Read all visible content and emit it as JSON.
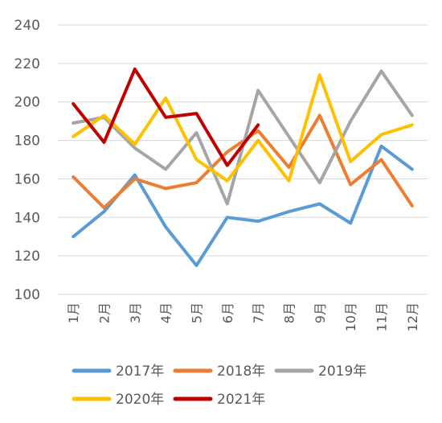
{
  "chart_data": {
    "type": "line",
    "title": "",
    "xlabel": "",
    "ylabel": "",
    "ylim": [
      100,
      240
    ],
    "yticks": [
      100,
      120,
      140,
      160,
      180,
      200,
      220,
      240
    ],
    "grid": true,
    "legend_position": "bottom",
    "categories": [
      "1月",
      "2月",
      "3月",
      "4月",
      "5月",
      "6月",
      "7月",
      "8月",
      "9月",
      "10月",
      "11月",
      "12月"
    ],
    "series": [
      {
        "name": "2017年",
        "color": "#5B9BD5",
        "values": [
          130,
          143,
          162,
          135,
          115,
          140,
          138,
          143,
          147,
          137,
          177,
          165
        ]
      },
      {
        "name": "2018年",
        "color": "#ED7D31",
        "values": [
          161,
          145,
          160,
          155,
          158,
          174,
          185,
          166,
          193,
          157,
          170,
          146
        ]
      },
      {
        "name": "2019年",
        "color": "#A5A5A5",
        "values": [
          189,
          192,
          176,
          165,
          184,
          147,
          206,
          182,
          158,
          190,
          216,
          193
        ]
      },
      {
        "name": "2020年",
        "color": "#FFC000",
        "values": [
          182,
          193,
          178,
          202,
          170,
          159,
          180,
          159,
          214,
          169,
          183,
          188
        ]
      },
      {
        "name": "2021年",
        "color": "#C00000",
        "values": [
          199,
          179,
          217,
          192,
          194,
          167,
          188,
          null,
          null,
          null,
          null,
          null
        ]
      }
    ]
  }
}
